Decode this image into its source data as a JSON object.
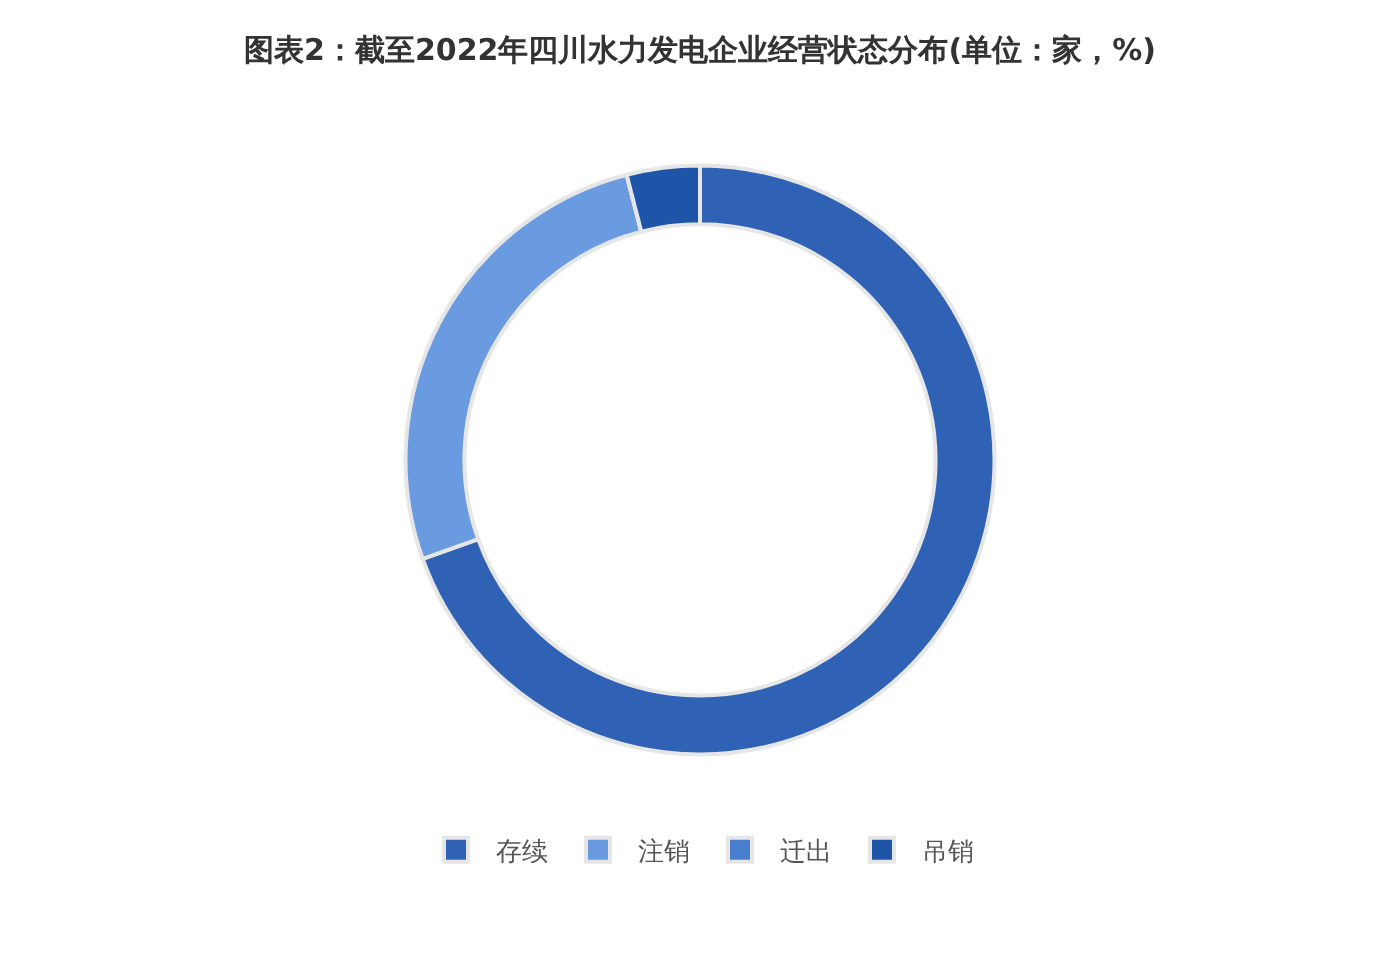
{
  "chart_data": {
    "type": "donut",
    "title": "图表2：截至2022年四川水力发电企业经营状态分布(单位：家，%)",
    "categories": [
      "存续",
      "注销",
      "迁出",
      "吊销"
    ],
    "values": [
      69.4,
      26.4,
      null,
      4.0
    ],
    "colors": [
      "#2f62b4",
      "#6a9ae0",
      "#4a7fd0",
      "#1f55a8"
    ],
    "legend": "bottom"
  }
}
